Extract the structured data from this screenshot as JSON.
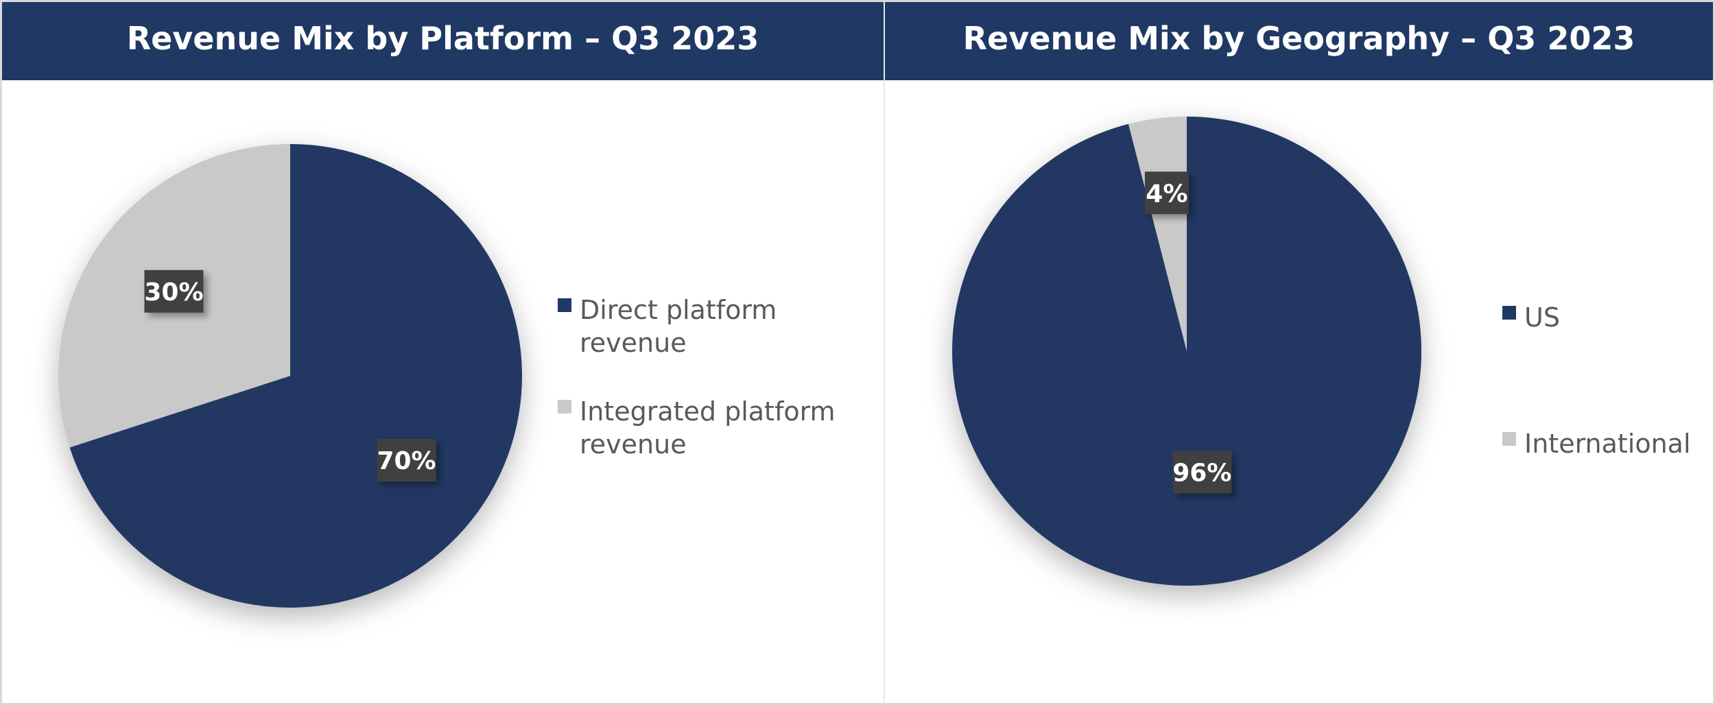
{
  "colors": {
    "header_bg": "#203864",
    "primary": "#203864",
    "secondary": "#c9c9c9",
    "label_box": "#404040"
  },
  "chart_data": [
    {
      "type": "pie",
      "title": "Revenue Mix by Platform – Q3 2023",
      "categories": [
        "Direct platform revenue",
        "Integrated platform revenue"
      ],
      "legend_lines": [
        [
          "Direct platform",
          "revenue"
        ],
        [
          "Integrated platform",
          "revenue"
        ]
      ],
      "values": [
        70,
        30
      ],
      "labels": [
        "70%",
        "30%"
      ],
      "colors": [
        "#203864",
        "#c9c9c9"
      ],
      "legend": "right"
    },
    {
      "type": "pie",
      "title": "Revenue Mix by Geography – Q3 2023",
      "categories": [
        "US",
        "International"
      ],
      "legend_lines": [
        [
          "US"
        ],
        [
          "International"
        ]
      ],
      "values": [
        96,
        4
      ],
      "labels": [
        "96%",
        "4%"
      ],
      "colors": [
        "#203864",
        "#c9c9c9"
      ],
      "legend": "right"
    }
  ]
}
